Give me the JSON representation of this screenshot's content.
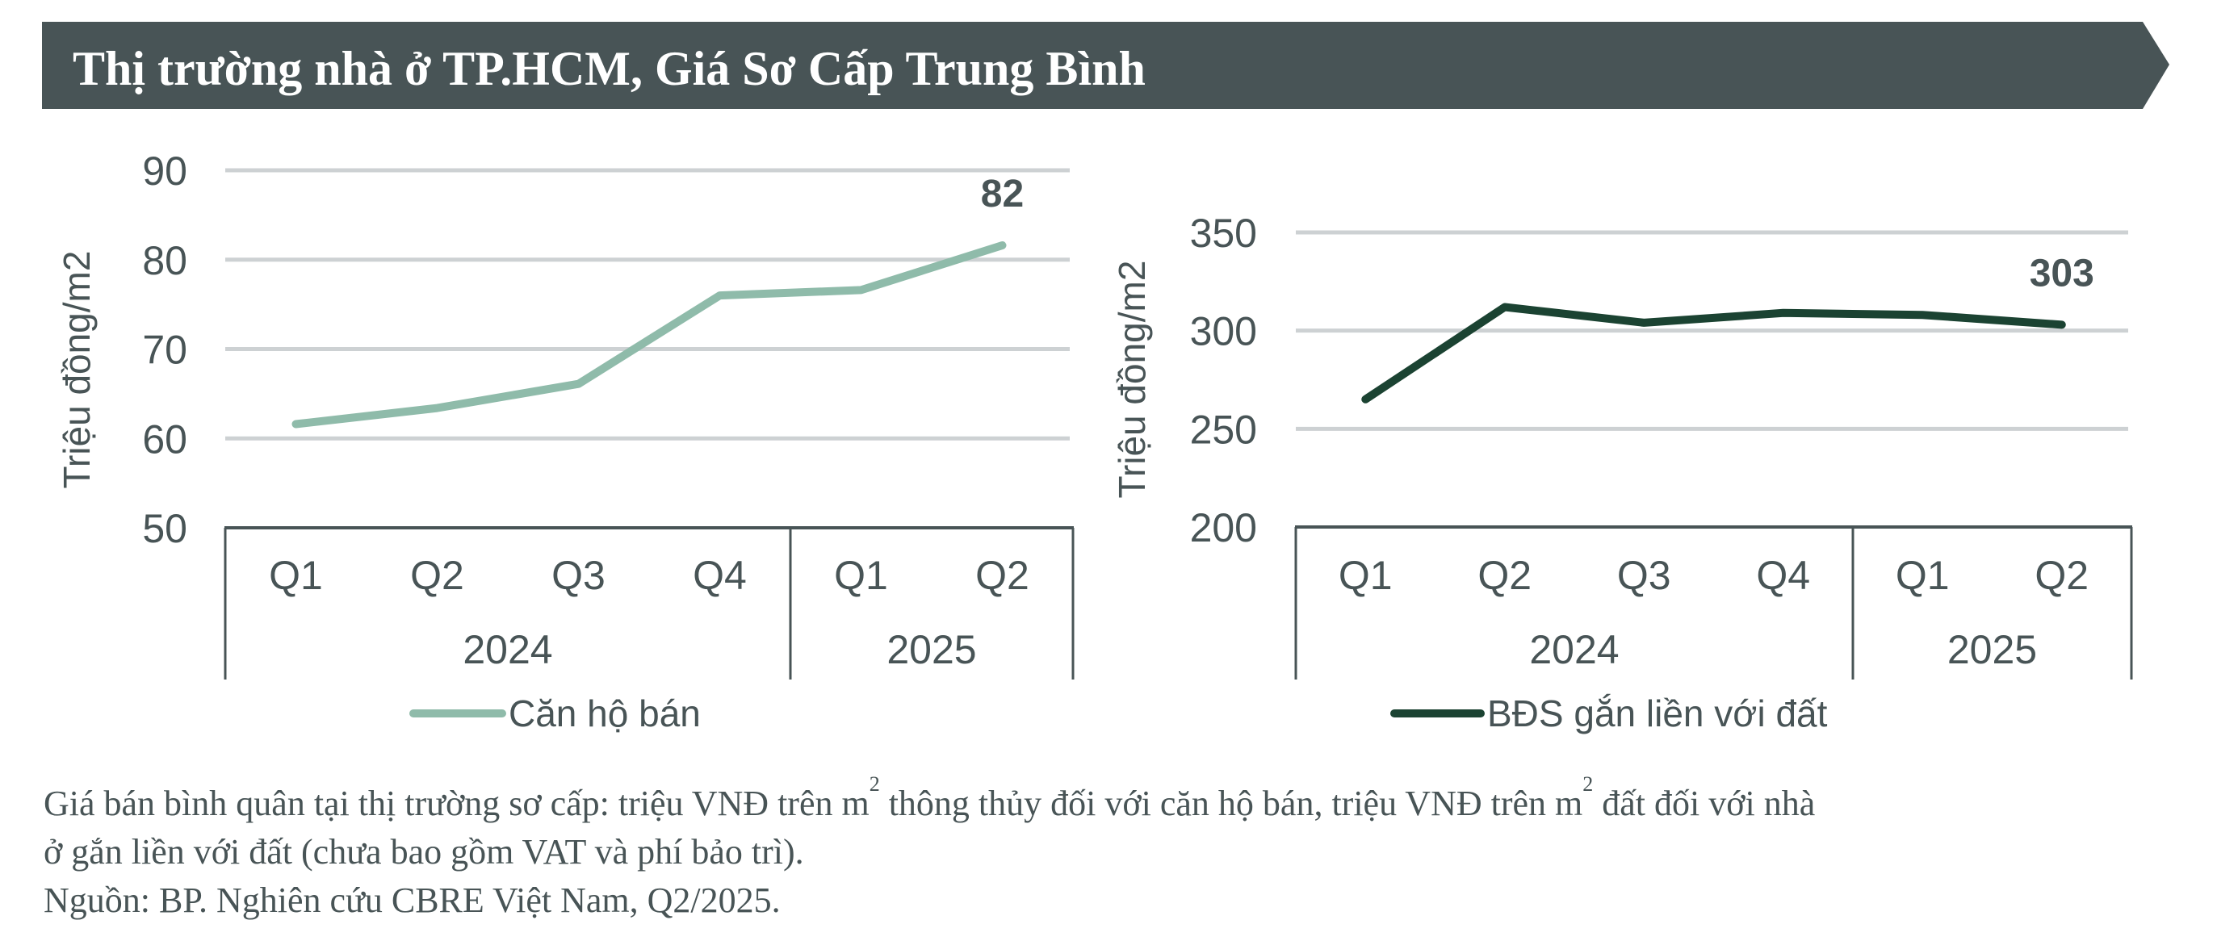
{
  "banner": {
    "title": "Thị trường nhà ở TP.HCM, Giá Sơ Cấp Trung Bình",
    "color": "#485456"
  },
  "chart_data": [
    {
      "type": "line",
      "title": "",
      "ylabel": "Triệu đồng/m2",
      "xlabel": "",
      "ylim": [
        50,
        90
      ],
      "yticks": [
        "50",
        "60",
        "70",
        "80",
        "90"
      ],
      "categories": [
        "Q1",
        "Q2",
        "Q3",
        "Q4",
        "Q1",
        "Q2"
      ],
      "groups": [
        {
          "label": "2024",
          "count": 4
        },
        {
          "label": "2025",
          "count": 2
        }
      ],
      "grid": true,
      "legend": "bottom",
      "series": [
        {
          "name": "Căn hộ bán",
          "color": "#8fbbaa",
          "values": [
            61.6,
            63.4,
            66.1,
            76.0,
            76.6,
            81.6
          ]
        }
      ],
      "annotations": [
        {
          "index": 5,
          "text": "82"
        }
      ]
    },
    {
      "type": "line",
      "title": "",
      "ylabel": "Triệu đồng/m2",
      "xlabel": "",
      "ylim": [
        200,
        350
      ],
      "yticks": [
        "200",
        "250",
        "300",
        "350"
      ],
      "categories": [
        "Q1",
        "Q2",
        "Q3",
        "Q4",
        "Q1",
        "Q2"
      ],
      "groups": [
        {
          "label": "2024",
          "count": 4
        },
        {
          "label": "2025",
          "count": 2
        }
      ],
      "grid": true,
      "legend": "bottom",
      "series": [
        {
          "name": "BĐS gắn liền với đất",
          "color": "#1b4332",
          "values": [
            265,
            312,
            304,
            309,
            308,
            303
          ]
        }
      ],
      "annotations": [
        {
          "index": 5,
          "text": "303"
        }
      ]
    }
  ],
  "footnote": {
    "line1_a": "Giá bán bình quân tại thị trường sơ cấp: triệu VNĐ trên m",
    "sup1": "2",
    "line1_b": " thông thủy đối với căn hộ bán, triệu VNĐ trên m",
    "sup2": "2",
    "line1_c": " đất đối với nhà",
    "line2": "ở gắn liền với đất (chưa bao gồm VAT và phí bảo trì).",
    "line3": "Nguồn: BP. Nghiên cứu CBRE Việt Nam, Q2/2025."
  },
  "colors": {
    "text": "#485456",
    "grid": "#cdd1d3",
    "axis": "#485456"
  }
}
